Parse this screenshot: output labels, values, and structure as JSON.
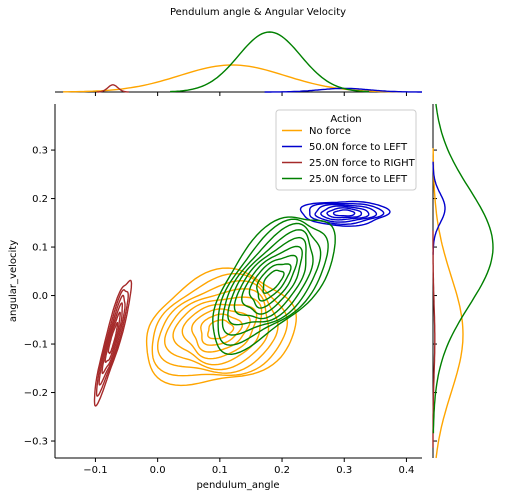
{
  "figure": {
    "title": "Pendulum angle & Angular Velocity"
  },
  "chart_data": {
    "type": "kde-jointplot",
    "title": "Pendulum angle & Angular Velocity",
    "xlabel": "pendulum_angle",
    "ylabel": "angular_velocity",
    "xlim": [
      -0.165,
      0.425
    ],
    "ylim": [
      -0.335,
      0.395
    ],
    "xticks": [
      -0.1,
      0.0,
      0.1,
      0.2,
      0.3,
      0.4
    ],
    "xtick_labels": [
      "−0.1",
      "0.0",
      "0.1",
      "0.2",
      "0.3",
      "0.4"
    ],
    "yticks": [
      -0.3,
      -0.2,
      -0.1,
      0.0,
      0.1,
      0.2,
      0.3
    ],
    "ytick_labels": [
      "−0.3",
      "−0.2",
      "−0.1",
      "0.0",
      "0.1",
      "0.2",
      "0.3"
    ],
    "grid": false,
    "legend": {
      "title": "Action",
      "placement": "top-right",
      "entries": [
        "No force",
        "50.0N force to LEFT",
        "25.0N force to RIGHT",
        "25.0N force to LEFT"
      ]
    },
    "series": [
      {
        "name": "No force",
        "color": "#ffa500",
        "center": [
          0.1,
          -0.07
        ],
        "spread": [
          0.105,
          0.13
        ],
        "rotation_deg": -50,
        "levels": 9,
        "marginal_x": {
          "mu": 0.12,
          "sigma": 0.085,
          "peak": 0.45
        },
        "marginal_y": {
          "mu": -0.08,
          "sigma": 0.12,
          "peak": 0.5
        }
      },
      {
        "name": "50.0N force to LEFT",
        "color": "#0000cd",
        "center": [
          0.3,
          0.17
        ],
        "spread": [
          0.07,
          0.025
        ],
        "rotation_deg": 0,
        "levels": 6,
        "marginal_x": {
          "mu": 0.3,
          "sigma": 0.04,
          "peak": 0.06
        },
        "marginal_y": {
          "mu": 0.18,
          "sigma": 0.03,
          "peak": 0.2
        }
      },
      {
        "name": "25.0N force to RIGHT",
        "color": "#a52a2a",
        "center": [
          -0.072,
          -0.09
        ],
        "spread": [
          0.012,
          0.13
        ],
        "rotation_deg": -12,
        "levels": 6,
        "marginal_x": {
          "mu": -0.072,
          "sigma": 0.008,
          "peak": 0.12
        },
        "marginal_y": {
          "mu": -0.09,
          "sigma": 0.07,
          "peak": 0.03
        }
      },
      {
        "name": "25.0N force to LEFT",
        "color": "#008000",
        "center": [
          0.185,
          0.03
        ],
        "spread": [
          0.07,
          0.155
        ],
        "rotation_deg": -30,
        "levels": 9,
        "marginal_x": {
          "mu": 0.18,
          "sigma": 0.05,
          "peak": 1.0
        },
        "marginal_y": {
          "mu": 0.1,
          "sigma": 0.12,
          "peak": 1.0
        }
      }
    ]
  }
}
